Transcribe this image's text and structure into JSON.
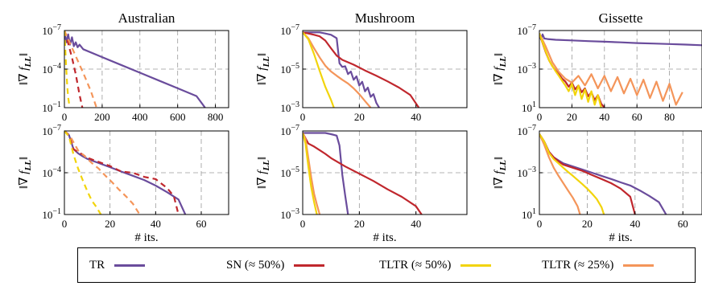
{
  "colors": {
    "TR": "#6a4c9c",
    "SN": "#c0272d",
    "TLTR50": "#f2d40c",
    "TLTR25": "#f4955a",
    "grid": "#9a9a9a"
  },
  "legend": {
    "items": [
      {
        "key": "TR",
        "label": "TR"
      },
      {
        "key": "SN",
        "label": "SN (≈ 50%)"
      },
      {
        "key": "TLTR50",
        "label": "TLTR (≈ 50%)"
      },
      {
        "key": "TLTR25",
        "label": "TLTR (≈ 25%)"
      }
    ]
  },
  "chart_data": [
    {
      "type": "line",
      "title": "Australian",
      "ylabel": "‖∇ f_LL‖",
      "xlabel": "",
      "yscale": "log",
      "xlim": [
        0,
        870
      ],
      "ylim": [
        1e-07,
        0.1
      ],
      "xticks": [
        0,
        200,
        400,
        600,
        800
      ],
      "yticks": [
        "10−1",
        "10−4",
        "10−7"
      ],
      "grid": true,
      "series": [
        {
          "name": "TR",
          "style": "solid",
          "x": [
            0,
            10,
            20,
            30,
            40,
            50,
            60,
            70,
            80,
            100,
            200,
            300,
            400,
            500,
            600,
            700,
            745
          ],
          "y": [
            0.1,
            0.012,
            0.05,
            0.008,
            0.03,
            0.006,
            0.012,
            0.005,
            0.008,
            0.0035,
            0.00085,
            0.00021,
            5.2e-05,
            1.3e-05,
            3.2e-06,
            8e-07,
            1e-07
          ]
        },
        {
          "name": "SN (≈ 50%)",
          "style": "dashed",
          "x": [
            0,
            20,
            40,
            60,
            80,
            95
          ],
          "y": [
            0.1,
            0.01,
            0.0008,
            4e-05,
            1e-06,
            1e-07
          ]
        },
        {
          "name": "TLTR (≈ 50%)",
          "style": "dashed",
          "x": [
            0,
            5,
            10,
            15,
            20,
            28
          ],
          "y": [
            0.1,
            0.003,
            0.0001,
            5e-06,
            6e-07,
            1e-07
          ]
        },
        {
          "name": "TLTR (≈ 25%)",
          "style": "dashed",
          "x": [
            0,
            30,
            60,
            100,
            140,
            170
          ],
          "y": [
            0.1,
            0.01,
            0.001,
            5e-05,
            2e-06,
            1e-07
          ]
        }
      ]
    },
    {
      "type": "line",
      "title": "Mushroom",
      "ylabel": "‖∇ f_LL‖",
      "xlabel": "",
      "yscale": "log",
      "xlim": [
        0,
        58
      ],
      "ylim": [
        1e-07,
        0.001
      ],
      "xticks": [
        0,
        20,
        40
      ],
      "yticks": [
        "10−3",
        "10−5",
        "10−7"
      ],
      "grid": true,
      "series": [
        {
          "name": "TR",
          "style": "solid",
          "x": [
            0,
            2,
            4,
            6,
            8,
            10,
            12,
            13,
            14,
            15,
            16,
            17,
            18,
            19,
            20,
            21,
            22,
            23,
            24,
            25,
            26,
            27
          ],
          "y": [
            0.0008,
            0.0008,
            0.0008,
            0.0008,
            0.0007,
            0.0006,
            0.0004,
            2e-05,
            1.3e-05,
            1.4e-05,
            5.5e-06,
            7.5e-06,
            2.8e-06,
            4.2e-06,
            1.4e-06,
            2.2e-06,
            7e-07,
            1.1e-06,
            3.6e-07,
            5e-07,
            1.8e-07,
            1e-07
          ]
        },
        {
          "name": "SN (≈ 50%)",
          "style": "solid",
          "x": [
            0,
            2,
            4,
            6,
            8,
            10,
            12,
            14,
            18,
            22,
            26,
            30,
            34,
            38,
            41
          ],
          "y": [
            0.0008,
            0.0007,
            0.0006,
            0.0005,
            0.0003,
            0.00012,
            5e-05,
            3e-05,
            1.7e-05,
            8.5e-06,
            4.5e-06,
            2.3e-06,
            1.1e-06,
            4.5e-07,
            1e-07
          ]
        },
        {
          "name": "TLTR (≈ 50%)",
          "style": "solid",
          "x": [
            0,
            2,
            4,
            6,
            8,
            10,
            11
          ],
          "y": [
            0.0008,
            0.00035,
            6e-05,
            8e-06,
            1.2e-06,
            2.5e-07,
            1e-07
          ]
        },
        {
          "name": "TLTR (≈ 25%)",
          "style": "solid",
          "x": [
            0,
            2,
            4,
            6,
            8,
            10,
            12,
            14,
            16,
            18,
            20,
            22,
            24
          ],
          "y": [
            0.0008,
            0.0004,
            0.00012,
            4e-05,
            1.5e-05,
            7.5e-06,
            4.5e-06,
            2.8e-06,
            1.8e-06,
            1e-06,
            5e-07,
            2.2e-07,
            1e-07
          ]
        }
      ]
    },
    {
      "type": "line",
      "title": "Gissette",
      "ylabel": "‖∇ f_LL‖",
      "xlabel": "",
      "yscale": "log",
      "xlim": [
        0,
        100
      ],
      "ylim": [
        1e-07,
        10
      ],
      "xticks": [
        0,
        20,
        40,
        60,
        80
      ],
      "yticks": [
        "101",
        "10−3",
        "10−7"
      ],
      "grid": true,
      "series": [
        {
          "name": "TR",
          "style": "solid",
          "x": [
            0,
            1,
            2,
            3,
            5,
            10,
            20,
            30,
            40,
            50,
            60,
            70,
            80,
            90,
            100
          ],
          "y": [
            5,
            1.2,
            4,
            1.5,
            1.3,
            1.1,
            0.95,
            0.8,
            0.7,
            0.6,
            0.5,
            0.45,
            0.4,
            0.35,
            0.3
          ]
        },
        {
          "name": "SN (≈ 50%)",
          "style": "solid",
          "x": [
            0,
            2,
            4,
            6,
            8,
            10,
            12,
            14,
            16,
            18,
            20,
            22,
            24,
            26,
            28,
            30,
            32,
            34,
            36,
            38,
            40
          ],
          "y": [
            5,
            0.5,
            0.05,
            0.008,
            0.002,
            0.0007,
            0.0003,
            0.0001,
            5e-05,
            1.5e-05,
            4e-05,
            8e-06,
            2e-05,
            4e-06,
            1e-05,
            1.5e-06,
            4e-06,
            6e-07,
            2e-06,
            2.5e-07,
            1e-07
          ]
        },
        {
          "name": "TLTR (≈ 50%)",
          "style": "solid",
          "x": [
            0,
            2,
            4,
            6,
            8,
            10,
            12,
            14,
            16,
            18,
            20,
            22,
            24,
            26,
            28,
            30,
            32,
            34,
            36,
            38
          ],
          "y": [
            5,
            0.6,
            0.06,
            0.008,
            0.002,
            0.0006,
            0.0002,
            6e-05,
            2e-05,
            5e-06,
            3e-05,
            2e-06,
            2e-05,
            8e-07,
            8e-06,
            4e-07,
            5e-06,
            2e-07,
            2e-06,
            1e-07
          ]
        },
        {
          "name": "TLTR (≈ 25%)",
          "style": "solid",
          "x": [
            0,
            4,
            8,
            12,
            16,
            20,
            24,
            28,
            32,
            36,
            40,
            44,
            48,
            52,
            56,
            60,
            64,
            68,
            72,
            76,
            80,
            84,
            88
          ],
          "y": [
            5,
            0.2,
            0.005,
            0.0005,
            0.0001,
            4e-05,
            0.0002,
            2e-05,
            0.0003,
            1e-05,
            0.0002,
            5e-06,
            0.00015,
            3e-06,
            0.0001,
            2e-06,
            8e-05,
            1e-06,
            5e-05,
            5e-07,
            3e-05,
            2e-07,
            4e-06
          ]
        }
      ]
    },
    {
      "type": "line",
      "title": "",
      "ylabel": "‖∇ f_LL‖",
      "xlabel": "# its.",
      "yscale": "log",
      "xlim": [
        0,
        72
      ],
      "ylim": [
        1e-07,
        0.1
      ],
      "xticks": [
        0,
        20,
        40,
        60
      ],
      "yticks": [
        "10−1",
        "10−4",
        "10−7"
      ],
      "grid": true,
      "series": [
        {
          "name": "TR",
          "style": "solid",
          "x": [
            0,
            2,
            4,
            6,
            8,
            10,
            15,
            20,
            25,
            30,
            35,
            40,
            45,
            50,
            53
          ],
          "y": [
            0.1,
            0.05,
            0.005,
            0.0025,
            0.0015,
            0.001,
            0.0005,
            0.00025,
            0.00012,
            6e-05,
            3e-05,
            1.2e-05,
            4e-06,
            1.2e-06,
            1e-07
          ]
        },
        {
          "name": "SN (≈ 50%)",
          "style": "dashed",
          "x": [
            0,
            2,
            4,
            6,
            8,
            10,
            15,
            20,
            25,
            30,
            35,
            40,
            45,
            48,
            50
          ],
          "y": [
            0.1,
            0.05,
            0.005,
            0.003,
            0.002,
            0.0012,
            0.0006,
            0.0003,
            0.00012,
            0.0001,
            5e-05,
            3.5e-05,
            8e-06,
            2e-06,
            1e-07
          ]
        },
        {
          "name": "TLTR (≈ 50%)",
          "style": "dashed",
          "x": [
            0,
            2,
            4,
            6,
            8,
            10,
            12,
            14,
            16
          ],
          "y": [
            0.1,
            0.04,
            0.002,
            0.0002,
            3e-05,
            5e-06,
            1e-06,
            3.5e-07,
            1e-07
          ]
        },
        {
          "name": "TLTR (≈ 25%)",
          "style": "dashed",
          "x": [
            0,
            3,
            6,
            9,
            12,
            15,
            18,
            21,
            24,
            27,
            30,
            33
          ],
          "y": [
            0.1,
            0.03,
            0.004,
            0.0015,
            0.0005,
            0.0002,
            6e-05,
            2e-05,
            6e-06,
            2e-06,
            6e-07,
            1e-07
          ]
        }
      ]
    },
    {
      "type": "line",
      "title": "",
      "ylabel": "‖∇ f_LL‖",
      "xlabel": "# its.",
      "yscale": "log",
      "xlim": [
        0,
        58
      ],
      "ylim": [
        1e-07,
        0.001
      ],
      "xticks": [
        0,
        20,
        40
      ],
      "yticks": [
        "10−3",
        "10−5",
        "10−7"
      ],
      "grid": true,
      "series": [
        {
          "name": "TR",
          "style": "solid",
          "x": [
            0,
            2,
            4,
            6,
            8,
            10,
            12,
            13,
            14,
            15,
            16
          ],
          "y": [
            0.0008,
            0.0008,
            0.0008,
            0.0008,
            0.0008,
            0.0007,
            0.0006,
            0.0002,
            8e-06,
            8e-07,
            1e-07
          ]
        },
        {
          "name": "SN (≈ 50%)",
          "style": "solid",
          "x": [
            0,
            2,
            4,
            6,
            8,
            10,
            15,
            20,
            25,
            30,
            35,
            40,
            42
          ],
          "y": [
            0.0008,
            0.00025,
            0.00018,
            0.00012,
            8e-05,
            5e-05,
            2e-05,
            9e-06,
            4e-06,
            1.6e-06,
            7e-07,
            2.5e-07,
            1e-07
          ]
        },
        {
          "name": "TLTR (≈ 50%)",
          "style": "solid",
          "x": [
            0,
            1,
            2,
            3,
            4,
            5
          ],
          "y": [
            0.0008,
            0.00025,
            2e-05,
            2e-06,
            4e-07,
            1e-07
          ]
        },
        {
          "name": "TLTR (≈ 25%)",
          "style": "solid",
          "x": [
            0,
            1,
            2,
            3,
            4,
            5,
            6
          ],
          "y": [
            0.0008,
            0.0004,
            5e-05,
            6e-06,
            1e-06,
            3e-07,
            1e-07
          ]
        }
      ]
    },
    {
      "type": "line",
      "title": "",
      "ylabel": "‖∇ f_LL‖",
      "xlabel": "# its.",
      "yscale": "log",
      "xlim": [
        0,
        68
      ],
      "ylim": [
        1e-07,
        10
      ],
      "xticks": [
        0,
        20,
        40,
        60
      ],
      "yticks": [
        "101",
        "10−3",
        "10−7"
      ],
      "grid": true,
      "series": [
        {
          "name": "TR",
          "style": "solid",
          "x": [
            0,
            2,
            4,
            6,
            8,
            10,
            14,
            18,
            22,
            26,
            30,
            34,
            38,
            42,
            46,
            50,
            53
          ],
          "y": [
            5,
            1,
            0.1,
            0.03,
            0.015,
            0.008,
            0.004,
            0.002,
            0.001,
            0.0005,
            0.00025,
            0.00012,
            6e-05,
            2e-05,
            6e-06,
            1.5e-06,
            1e-07
          ]
        },
        {
          "name": "SN (≈ 50%)",
          "style": "solid",
          "x": [
            0,
            2,
            4,
            6,
            8,
            10,
            14,
            18,
            22,
            26,
            30,
            34,
            38,
            40
          ],
          "y": [
            5,
            1,
            0.1,
            0.03,
            0.012,
            0.006,
            0.003,
            0.0015,
            0.0006,
            0.00025,
            0.0001,
            3e-05,
            5e-06,
            1e-07
          ]
        },
        {
          "name": "TLTR (≈ 50%)",
          "style": "solid",
          "x": [
            0,
            2,
            4,
            6,
            8,
            10,
            12,
            14,
            16,
            18,
            20,
            22,
            24,
            26,
            27
          ],
          "y": [
            5,
            1,
            0.08,
            0.02,
            0.008,
            0.003,
            0.0012,
            0.0005,
            0.0002,
            8e-05,
            3e-05,
            1e-05,
            3e-06,
            5e-07,
            1e-07
          ]
        },
        {
          "name": "TLTR (≈ 25%)",
          "style": "solid",
          "x": [
            0,
            2,
            4,
            6,
            8,
            10,
            12,
            14,
            16,
            17
          ],
          "y": [
            5,
            0.5,
            0.03,
            0.003,
            0.0005,
            0.0001,
            2e-05,
            4e-06,
            6e-07,
            1e-07
          ]
        }
      ]
    }
  ]
}
